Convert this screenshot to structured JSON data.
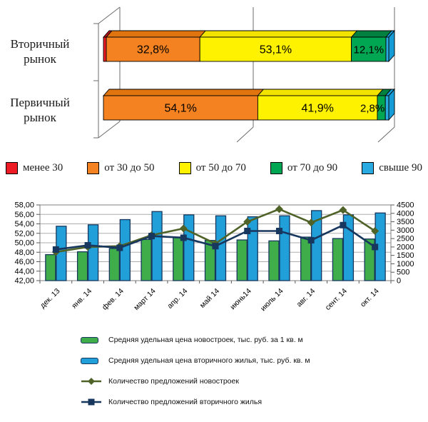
{
  "top_chart": {
    "type": "stacked-bar-3d-horizontal",
    "unit": "percent",
    "legend_labels": [
      "менее 30",
      "от 30 до 50",
      "от 50 до 70",
      "от 70 до 90",
      "свыше 90"
    ],
    "colors": [
      "#ED1C24",
      "#F58220",
      "#FFF200",
      "#00A651",
      "#29ABE2"
    ],
    "dark_colors": [
      "#BC1218",
      "#E0750F",
      "#F2E400",
      "#00813F",
      "#159BD5"
    ],
    "rows": [
      {
        "category": "Вторичный рынок",
        "values": [
          1.0,
          32.8,
          53.1,
          12.1,
          1.0
        ],
        "labels": [
          "",
          "32,8%",
          "53,1%",
          "12,1%",
          ""
        ]
      },
      {
        "category": "Первичный рынок",
        "values": [
          0,
          54.1,
          41.9,
          2.8,
          1.2
        ],
        "labels": [
          "",
          "54,1%",
          "41,9%",
          "2,8%",
          ""
        ]
      }
    ]
  },
  "bottom_chart": {
    "type": "combo-bar-line",
    "categories": [
      "дек. 13",
      "янв. 14",
      "фев. 14",
      "март 14",
      "апр. 14",
      "май 14",
      "июнь14",
      "июль 14",
      "авг. 14",
      "сент. 14",
      "окт. 14"
    ],
    "left_axis": {
      "min": 42,
      "max": 58,
      "step": 2,
      "labels": [
        "58,00",
        "56,00",
        "54,00",
        "52,00",
        "50,00",
        "48,00",
        "46,00",
        "44,00",
        "42,00"
      ]
    },
    "right_axis": {
      "min": 0,
      "max": 4500,
      "step": 500,
      "labels": [
        "4500",
        "4000",
        "3500",
        "3000",
        "2500",
        "2000",
        "1500",
        "1000",
        "500",
        "0"
      ]
    },
    "grid": true,
    "legend_position": "bottom",
    "series": [
      {
        "name": "Средняя удельная цена новостроек, тыс. руб. за 1 кв. м",
        "type": "bar",
        "axis": "left",
        "color": "#3FAE4A",
        "values": [
          47.5,
          48.1,
          48.8,
          50.7,
          51.2,
          50.5,
          50.6,
          50.4,
          51.2,
          50.9,
          50.8
        ]
      },
      {
        "name": "Средняя удельная цена вторичного жилья, тыс. руб. кв. м",
        "type": "bar",
        "axis": "left",
        "color": "#219FD9",
        "values": [
          53.5,
          53.8,
          54.9,
          56.6,
          55.9,
          55.7,
          55.5,
          55.7,
          56.8,
          55.9,
          56.3
        ]
      },
      {
        "name": "Количество предложений новостроек",
        "type": "line",
        "axis": "right",
        "color": "#4F6228",
        "marker": "diamond",
        "values": [
          1700,
          2000,
          2050,
          2700,
          3100,
          2200,
          3500,
          4250,
          3450,
          4200,
          2950
        ]
      },
      {
        "name": "Количество предложений вторичного жилья",
        "type": "line",
        "axis": "right",
        "color": "#17375E",
        "marker": "square",
        "values": [
          1850,
          2100,
          1950,
          2650,
          2550,
          2050,
          2950,
          2950,
          2400,
          3300,
          2000
        ]
      }
    ]
  }
}
